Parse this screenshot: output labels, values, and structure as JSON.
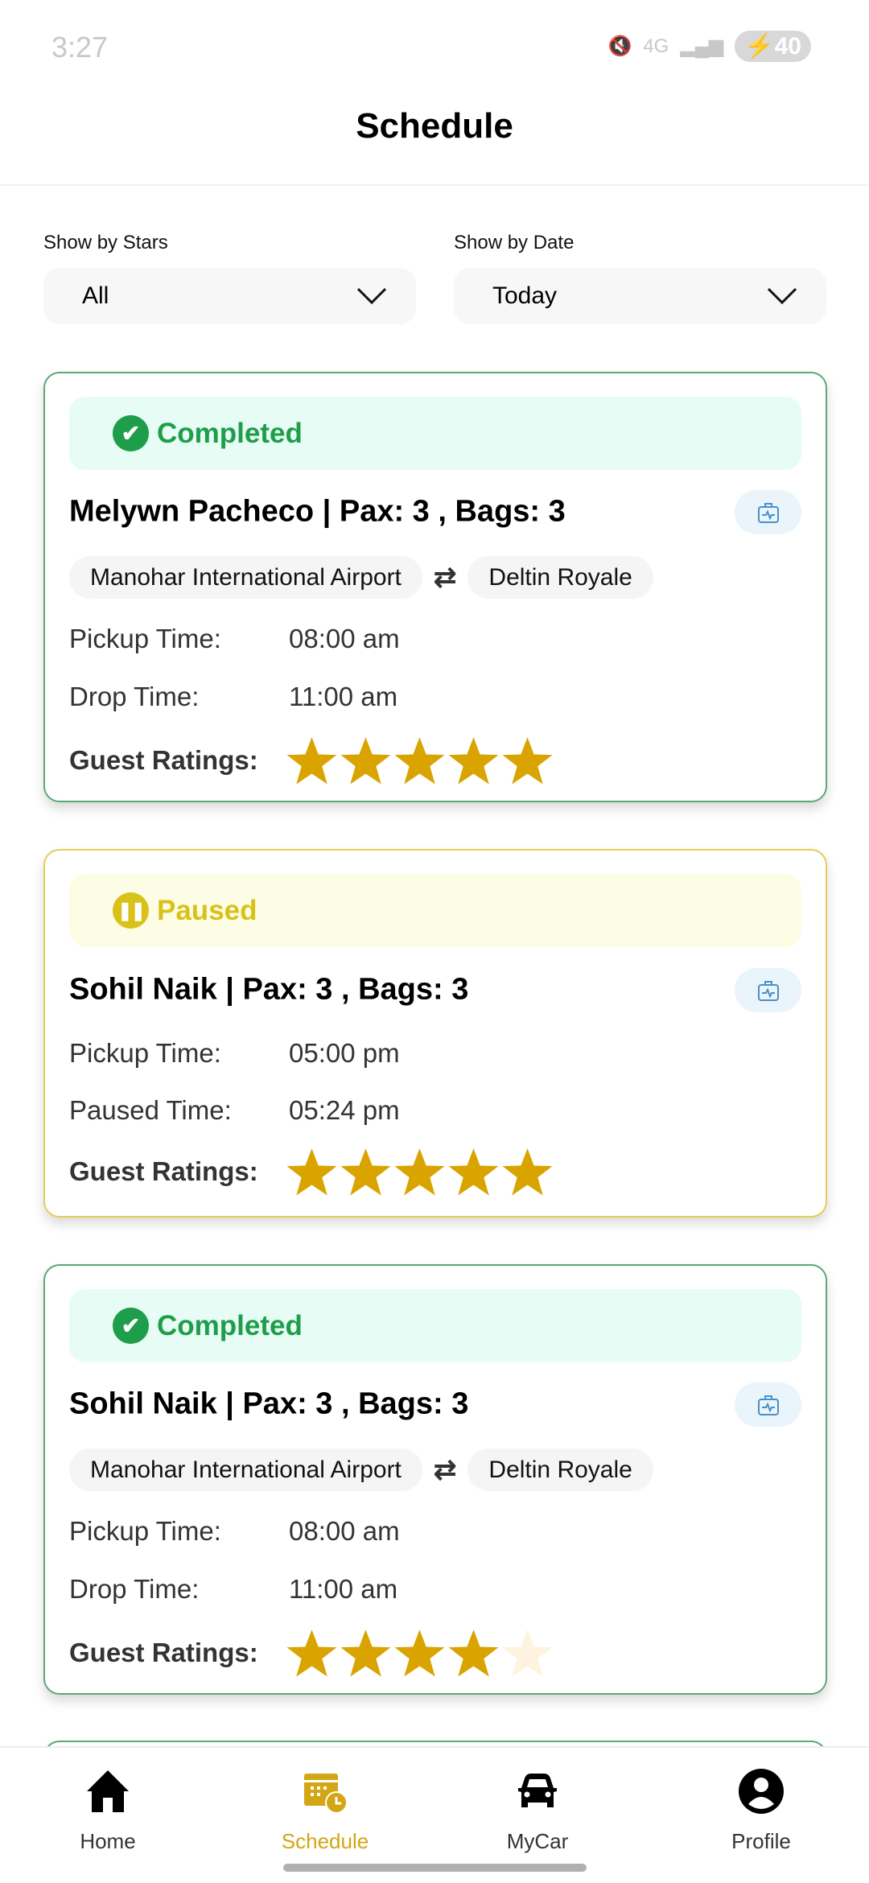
{
  "status_bar": {
    "time": "3:27",
    "network": "4G",
    "battery": "40"
  },
  "header": {
    "title": "Schedule"
  },
  "filters": {
    "stars": {
      "label": "Show by Stars",
      "value": "All"
    },
    "date": {
      "label": "Show by Date",
      "value": "Today"
    }
  },
  "colors": {
    "completed": "#1e9e4a",
    "paused": "#d8c21a",
    "star": "#d9a400",
    "active_nav": "#d4a514"
  },
  "trips": [
    {
      "status": "Completed",
      "title": "Melywn Pacheco | Pax: 3 , Bags: 3",
      "from": "Manohar International Airport",
      "to": "Deltin Royale",
      "rows": [
        {
          "label": "Pickup Time:",
          "value": "08:00 am"
        },
        {
          "label": "Drop Time:",
          "value": "11:00 am"
        }
      ],
      "ratings_label": "Guest Ratings:",
      "rating": 5
    },
    {
      "status": "Paused",
      "title": "Sohil Naik | Pax: 3 , Bags: 3",
      "rows": [
        {
          "label": "Pickup Time:",
          "value": "05:00 pm"
        },
        {
          "label": "Paused Time:",
          "value": "05:24 pm"
        }
      ],
      "ratings_label": "Guest Ratings:",
      "rating": 5
    },
    {
      "status": "Completed",
      "title": "Sohil Naik | Pax: 3 , Bags: 3",
      "from": "Manohar International Airport",
      "to": "Deltin Royale",
      "rows": [
        {
          "label": "Pickup Time:",
          "value": "08:00 am"
        },
        {
          "label": "Drop Time:",
          "value": "11:00 am"
        }
      ],
      "ratings_label": "Guest Ratings:",
      "rating": 4
    }
  ],
  "nav": [
    {
      "label": "Home",
      "icon": "home-icon"
    },
    {
      "label": "Schedule",
      "icon": "calendar-clock-icon",
      "active": true
    },
    {
      "label": "MyCar",
      "icon": "car-icon"
    },
    {
      "label": "Profile",
      "icon": "profile-icon"
    }
  ]
}
